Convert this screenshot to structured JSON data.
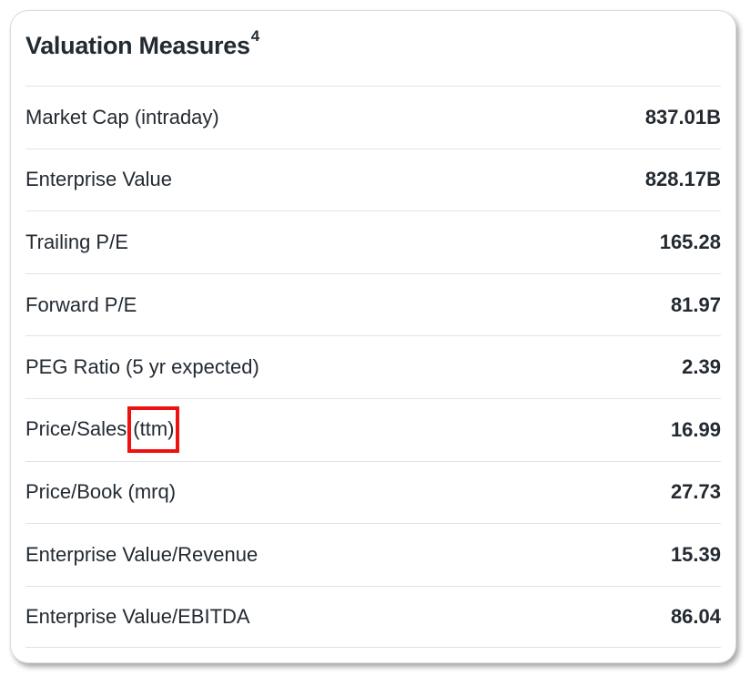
{
  "card": {
    "title": "Valuation Measures",
    "footnote": "4"
  },
  "rows": [
    {
      "label": "Market Cap (intraday)",
      "value": "837.01B"
    },
    {
      "label": "Enterprise Value",
      "value": "828.17B"
    },
    {
      "label": "Trailing P/E",
      "value": "165.28"
    },
    {
      "label": "Forward P/E",
      "value": "81.97"
    },
    {
      "label": "PEG Ratio (5 yr expected)",
      "value": "2.39"
    },
    {
      "label_prefix": "Price/Sales",
      "label_highlight": "(ttm)",
      "value": "16.99"
    },
    {
      "label": "Price/Book (mrq)",
      "value": "27.73"
    },
    {
      "label": "Enterprise Value/Revenue",
      "value": "15.39"
    },
    {
      "label": "Enterprise Value/EBITDA",
      "value": "86.04"
    }
  ],
  "colors": {
    "text": "#232a31",
    "divider": "#e0e4e9",
    "highlight": "#ee1111"
  }
}
